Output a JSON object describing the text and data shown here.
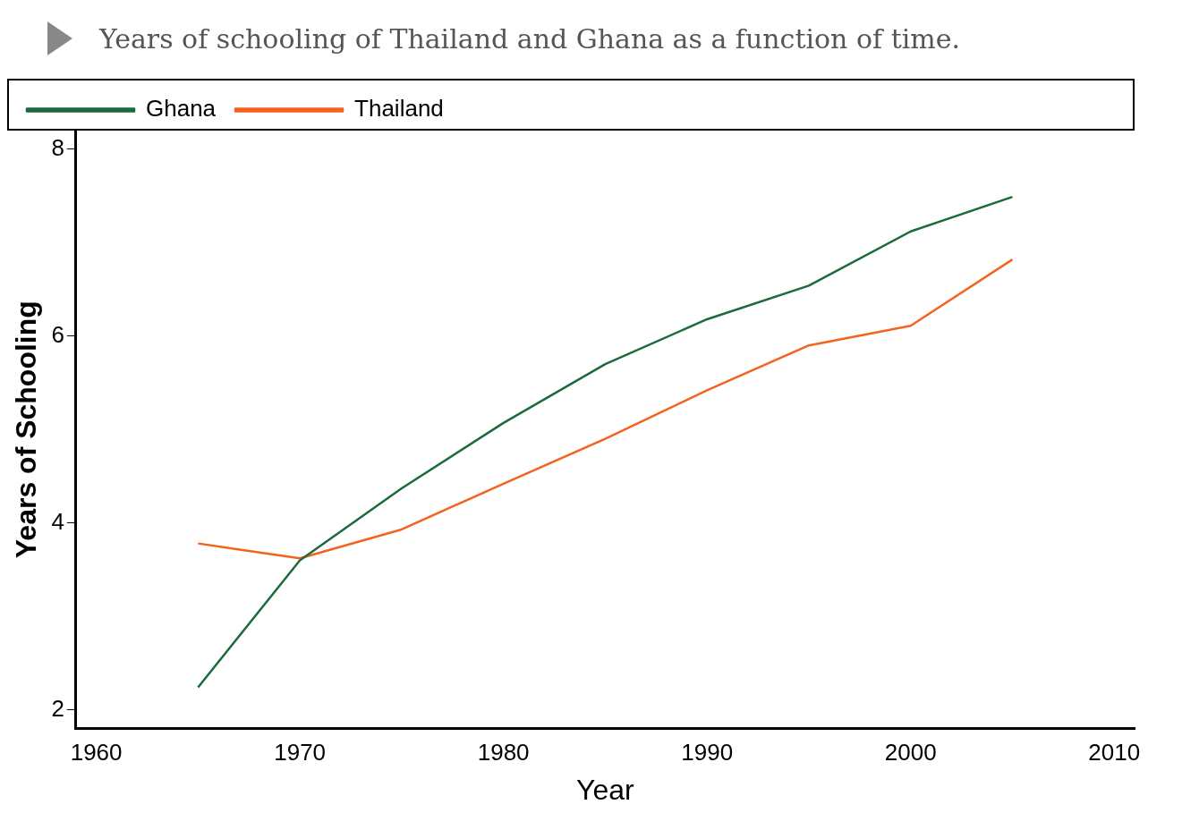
{
  "chart_data": {
    "type": "line",
    "title": "Years of schooling of Thailand and Ghana as a function of time.",
    "xlabel": "Year",
    "ylabel": "Years of Schooling",
    "x": [
      1965,
      1970,
      1975,
      1980,
      1985,
      1990,
      1995,
      2000,
      2005
    ],
    "series": [
      {
        "name": "Ghana",
        "color": "#1a6b3c",
        "values": [
          2.24,
          3.6,
          4.37,
          5.07,
          5.7,
          6.18,
          6.54,
          7.12,
          7.49
        ]
      },
      {
        "name": "Thailand",
        "color": "#f4631e",
        "values": [
          3.78,
          3.62,
          3.93,
          4.42,
          4.9,
          5.42,
          5.9,
          6.11,
          6.82
        ]
      }
    ],
    "xlim": [
      1959,
      2011
    ],
    "xticks": [
      1960,
      1970,
      1980,
      1990,
      2000,
      2010
    ],
    "ylim": [
      1.8,
      8.2
    ],
    "yticks": [
      2,
      4,
      6,
      8
    ],
    "grid": false,
    "legend": "top left",
    "marker": "none",
    "line_style": "solid"
  }
}
